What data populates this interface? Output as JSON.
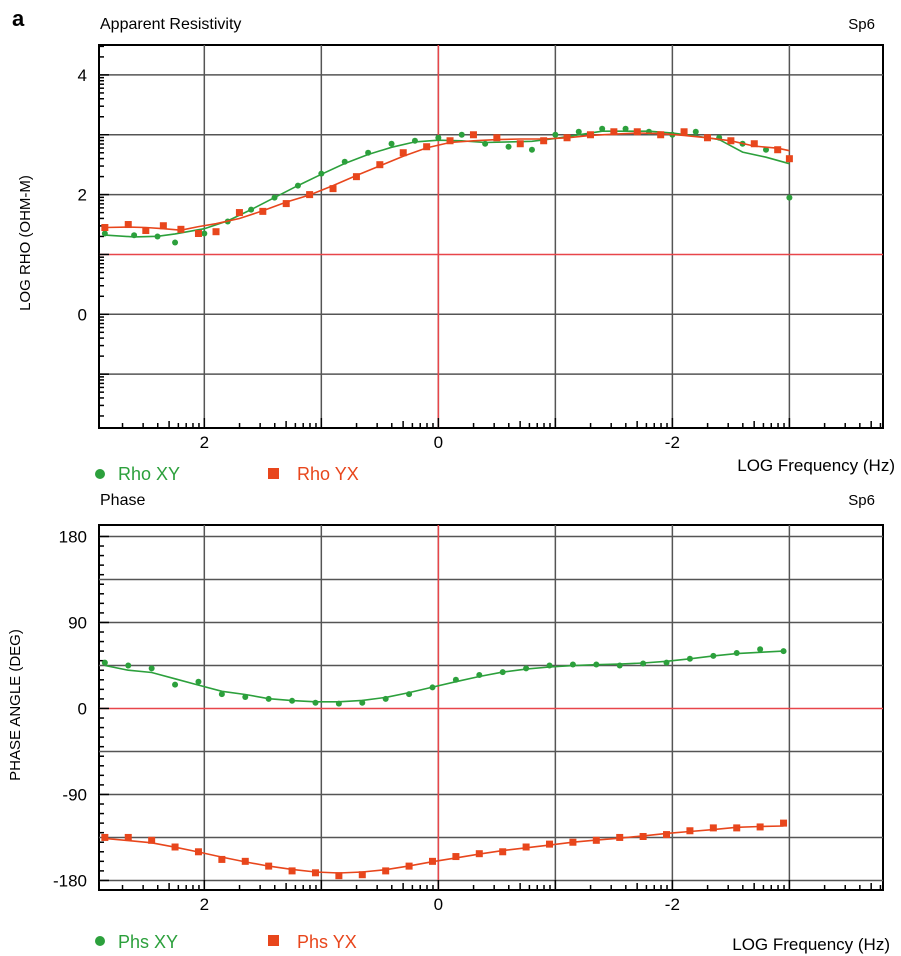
{
  "panel_label": "a",
  "chart_data": [
    {
      "type": "scatter",
      "title": "Apparent Resistivity",
      "station": "Sp6",
      "ylabel": "LOG RHO (OHM-M)",
      "xlabel": "LOG Frequency (Hz)",
      "xlim": [
        2.9,
        -3.8
      ],
      "ylim": [
        -1.9,
        4.5
      ],
      "x_ticks": [
        {
          "value": 2,
          "label": "2"
        },
        {
          "value": 0,
          "label": "0"
        },
        {
          "value": -2,
          "label": "-2"
        }
      ],
      "y_ticks": [
        {
          "value": 4,
          "label": "4"
        },
        {
          "value": 2,
          "label": "2"
        },
        {
          "value": 0,
          "label": "0"
        }
      ],
      "grid": true,
      "reference_lines": {
        "x": 0,
        "y": 1
      },
      "legend": "bottom-left",
      "colors": {
        "xy": "#2ca03c",
        "yx": "#e8461c",
        "reference": "#e8464a"
      },
      "series": [
        {
          "name": "Rho XY",
          "marker": "circle",
          "color": "#2ca03c",
          "x": [
            2.85,
            2.6,
            2.4,
            2.25,
            2.0,
            1.8,
            1.6,
            1.4,
            1.2,
            1.0,
            0.8,
            0.6,
            0.4,
            0.2,
            0.0,
            -0.2,
            -0.4,
            -0.6,
            -0.8,
            -1.0,
            -1.2,
            -1.4,
            -1.6,
            -1.8,
            -2.0,
            -2.2,
            -2.4,
            -2.6,
            -2.8,
            -3.0
          ],
          "y": [
            1.35,
            1.32,
            1.3,
            1.2,
            1.35,
            1.55,
            1.75,
            1.95,
            2.15,
            2.35,
            2.55,
            2.7,
            2.85,
            2.9,
            2.95,
            3.0,
            2.85,
            2.8,
            2.75,
            3.0,
            3.05,
            3.1,
            3.1,
            3.05,
            3.0,
            3.05,
            2.95,
            2.85,
            2.75,
            1.95
          ]
        },
        {
          "name": "Rho YX",
          "marker": "square",
          "color": "#e8461c",
          "x": [
            2.85,
            2.65,
            2.5,
            2.35,
            2.2,
            2.05,
            1.9,
            1.7,
            1.5,
            1.3,
            1.1,
            0.9,
            0.7,
            0.5,
            0.3,
            0.1,
            -0.1,
            -0.3,
            -0.5,
            -0.7,
            -0.9,
            -1.1,
            -1.3,
            -1.5,
            -1.7,
            -1.9,
            -2.1,
            -2.3,
            -2.5,
            -2.7,
            -2.9,
            -3.0
          ],
          "y": [
            1.45,
            1.5,
            1.4,
            1.48,
            1.42,
            1.35,
            1.38,
            1.7,
            1.72,
            1.85,
            2.0,
            2.1,
            2.3,
            2.5,
            2.7,
            2.8,
            2.9,
            3.0,
            2.95,
            2.85,
            2.9,
            2.95,
            3.0,
            3.05,
            3.05,
            3.0,
            3.05,
            2.95,
            2.9,
            2.85,
            2.75,
            2.6
          ]
        }
      ]
    },
    {
      "type": "scatter",
      "title": "Phase",
      "station": "Sp6",
      "ylabel": "PHASE ANGLE (DEG)",
      "xlabel": "LOG Frequency (Hz)",
      "xlim": [
        2.9,
        -3.8
      ],
      "ylim": [
        -190,
        192
      ],
      "x_ticks": [
        {
          "value": 2,
          "label": "2"
        },
        {
          "value": 0,
          "label": "0"
        },
        {
          "value": -2,
          "label": "-2"
        }
      ],
      "y_ticks": [
        {
          "value": 180,
          "label": "180"
        },
        {
          "value": 90,
          "label": "90"
        },
        {
          "value": 0,
          "label": "0"
        },
        {
          "value": -90,
          "label": "-90"
        },
        {
          "value": -180,
          "label": "-180"
        }
      ],
      "grid": true,
      "reference_lines": {
        "x": 0,
        "y": 0
      },
      "legend": "bottom-left",
      "colors": {
        "xy": "#2ca03c",
        "yx": "#e8461c",
        "reference": "#e8464a"
      },
      "series": [
        {
          "name": "Phs XY",
          "marker": "circle",
          "color": "#2ca03c",
          "x": [
            2.85,
            2.65,
            2.45,
            2.25,
            2.05,
            1.85,
            1.65,
            1.45,
            1.25,
            1.05,
            0.85,
            0.65,
            0.45,
            0.25,
            0.05,
            -0.15,
            -0.35,
            -0.55,
            -0.75,
            -0.95,
            -1.15,
            -1.35,
            -1.55,
            -1.75,
            -1.95,
            -2.15,
            -2.35,
            -2.55,
            -2.75,
            -2.95
          ],
          "y": [
            48,
            45,
            42,
            25,
            28,
            15,
            12,
            10,
            8,
            6,
            5,
            6,
            10,
            15,
            22,
            30,
            35,
            38,
            42,
            45,
            46,
            46,
            45,
            47,
            48,
            52,
            55,
            58,
            62,
            60
          ]
        },
        {
          "name": "Phs YX",
          "marker": "square",
          "color": "#e8461c",
          "x": [
            2.85,
            2.65,
            2.45,
            2.25,
            2.05,
            1.85,
            1.65,
            1.45,
            1.25,
            1.05,
            0.85,
            0.65,
            0.45,
            0.25,
            0.05,
            -0.15,
            -0.35,
            -0.55,
            -0.75,
            -0.95,
            -1.15,
            -1.35,
            -1.55,
            -1.75,
            -1.95,
            -2.15,
            -2.35,
            -2.55,
            -2.75,
            -2.95
          ],
          "y": [
            -135,
            -135,
            -138,
            -145,
            -150,
            -158,
            -160,
            -165,
            -170,
            -172,
            -175,
            -174,
            -170,
            -165,
            -160,
            -155,
            -152,
            -150,
            -145,
            -142,
            -140,
            -138,
            -135,
            -134,
            -132,
            -128,
            -125,
            -125,
            -124,
            -120
          ]
        }
      ]
    }
  ]
}
